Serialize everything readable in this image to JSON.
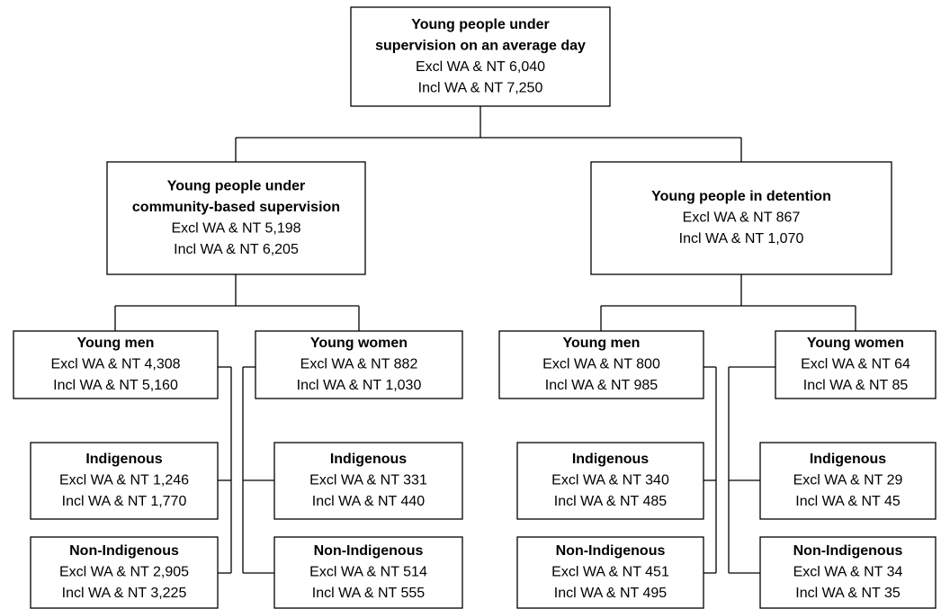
{
  "nodes": [
    {
      "title": [
        "Young people under",
        "supervision on an average day"
      ],
      "lines": [
        "Excl WA & NT 6,040",
        "Incl WA & NT 7,250"
      ]
    },
    {
      "title": [
        "Young people under",
        "community-based supervision"
      ],
      "lines": [
        "Excl WA & NT 5,198",
        "Incl WA & NT 6,205"
      ]
    },
    {
      "title": [
        "Young people in detention"
      ],
      "lines": [
        "Excl WA & NT 867",
        "Incl WA & NT 1,070"
      ]
    },
    {
      "title": [
        "Young men"
      ],
      "lines": [
        "Excl WA & NT 4,308",
        "Incl WA & NT 5,160"
      ]
    },
    {
      "title": [
        "Young women"
      ],
      "lines": [
        "Excl WA & NT 882",
        "Incl WA & NT 1,030"
      ]
    },
    {
      "title": [
        "Young men"
      ],
      "lines": [
        "Excl WA & NT 800",
        "Incl WA & NT 985"
      ]
    },
    {
      "title": [
        "Young women"
      ],
      "lines": [
        "Excl WA & NT 64",
        "Incl WA & NT 85"
      ]
    },
    {
      "title": [
        "Indigenous"
      ],
      "lines": [
        "Excl WA & NT 1,246",
        "Incl WA & NT 1,770"
      ]
    },
    {
      "title": [
        "Non-Indigenous"
      ],
      "lines": [
        "Excl WA & NT 2,905",
        "Incl WA & NT 3,225"
      ]
    },
    {
      "title": [
        "Indigenous"
      ],
      "lines": [
        "Excl WA & NT 331",
        "Incl WA & NT 440"
      ]
    },
    {
      "title": [
        "Non-Indigenous"
      ],
      "lines": [
        "Excl WA & NT 514",
        "Incl WA & NT 555"
      ]
    },
    {
      "title": [
        "Indigenous"
      ],
      "lines": [
        "Excl WA & NT 340",
        "Incl WA & NT 485"
      ]
    },
    {
      "title": [
        "Non-Indigenous"
      ],
      "lines": [
        "Excl WA & NT 451",
        "Incl WA & NT 495"
      ]
    },
    {
      "title": [
        "Indigenous"
      ],
      "lines": [
        "Excl WA & NT 29",
        "Incl WA & NT 45"
      ]
    },
    {
      "title": [
        "Non-Indigenous"
      ],
      "lines": [
        "Excl WA & NT 34",
        "Incl WA & NT 35"
      ]
    }
  ]
}
